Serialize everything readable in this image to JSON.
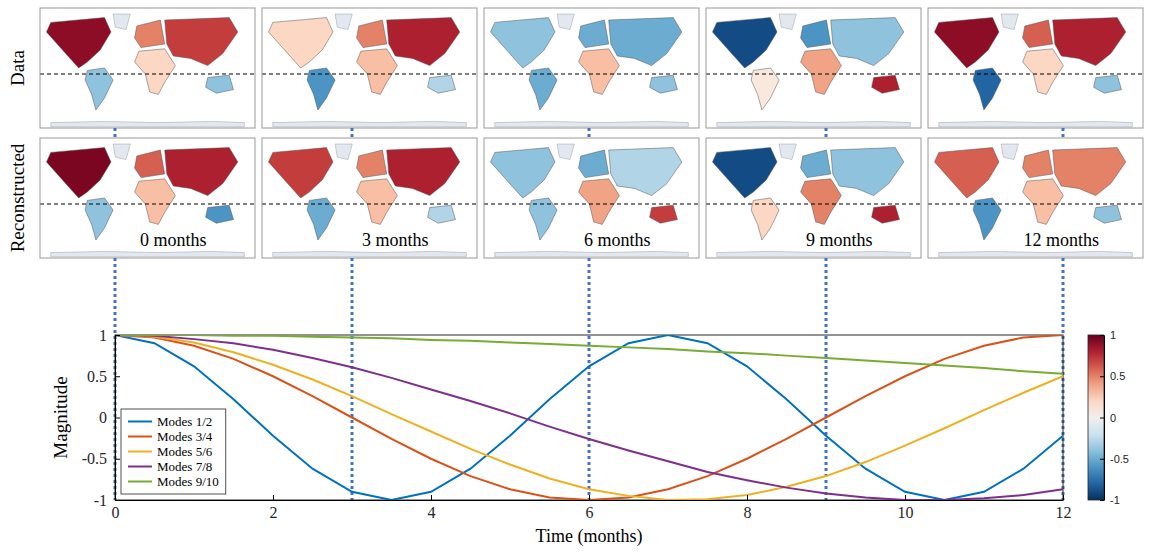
{
  "chart_data": [
    {
      "type": "choropleth",
      "row_labels": [
        "Data",
        "Reconstructed"
      ],
      "panel_labels": [
        "0 months",
        "3 months",
        "6 months",
        "9 months",
        "12 months"
      ],
      "x": [
        0,
        3,
        6,
        9,
        12
      ],
      "values": [
        [
          [
            0.9,
            -0.4,
            0.5,
            0.2,
            0.7,
            -0.4
          ],
          [
            0.2,
            -0.6,
            0.5,
            0.3,
            0.8,
            -0.3
          ],
          [
            -0.4,
            -0.5,
            -0.5,
            0.3,
            -0.5,
            -0.4
          ],
          [
            -0.9,
            0.1,
            -0.6,
            0.4,
            -0.4,
            0.8
          ],
          [
            0.9,
            -0.8,
            0.6,
            0.2,
            0.8,
            -0.4
          ]
        ],
        [
          [
            0.95,
            -0.4,
            0.6,
            0.3,
            0.8,
            -0.6
          ],
          [
            0.7,
            -0.5,
            0.5,
            0.3,
            0.8,
            -0.3
          ],
          [
            -0.4,
            -0.4,
            -0.5,
            0.4,
            -0.3,
            0.7
          ],
          [
            -0.9,
            0.2,
            -0.5,
            0.5,
            -0.4,
            0.8
          ],
          [
            0.6,
            -0.6,
            0.5,
            0.3,
            0.5,
            -0.4
          ]
        ]
      ],
      "colorbar": {
        "range": [
          -1,
          1
        ],
        "ticks": [
          -1,
          -0.5,
          0,
          0.5,
          1
        ]
      }
    },
    {
      "type": "line",
      "xlabel": "Time (months)",
      "ylabel": "Magnitude",
      "x": [
        0,
        0.5,
        1,
        1.5,
        2,
        2.5,
        3,
        3.5,
        4,
        4.5,
        5,
        5.5,
        6,
        6.5,
        7,
        7.5,
        8,
        8.5,
        9,
        9.5,
        10,
        10.5,
        11,
        11.5,
        12
      ],
      "xlim": [
        0,
        12
      ],
      "xticks": [
        0,
        2,
        4,
        6,
        8,
        10,
        12
      ],
      "ylim": [
        -1,
        1
      ],
      "yticks": [
        -1,
        -0.5,
        0,
        0.5,
        1
      ],
      "legend": "lower left",
      "series": [
        {
          "name": "Modes 1/2",
          "color": "#0072bd",
          "values": [
            1,
            0.9,
            0.62,
            0.22,
            -0.22,
            -0.62,
            -0.9,
            -1,
            -0.9,
            -0.62,
            -0.22,
            0.22,
            0.62,
            0.9,
            1,
            0.9,
            0.62,
            0.22,
            -0.22,
            -0.62,
            -0.9,
            -1,
            -0.9,
            -0.62,
            -0.22
          ]
        },
        {
          "name": "Modes 3/4",
          "color": "#d95319",
          "values": [
            1,
            0.97,
            0.87,
            0.71,
            0.5,
            0.26,
            0,
            -0.26,
            -0.5,
            -0.71,
            -0.87,
            -0.97,
            -1,
            -0.97,
            -0.87,
            -0.71,
            -0.5,
            -0.26,
            0,
            0.26,
            0.5,
            0.71,
            0.87,
            0.97,
            1
          ]
        },
        {
          "name": "Modes 5/6",
          "color": "#edb120",
          "values": [
            1,
            0.98,
            0.91,
            0.79,
            0.64,
            0.46,
            0.26,
            0.04,
            -0.17,
            -0.38,
            -0.57,
            -0.74,
            -0.87,
            -0.95,
            -1,
            -0.99,
            -0.94,
            -0.84,
            -0.71,
            -0.54,
            -0.34,
            -0.13,
            0.09,
            0.3,
            0.5
          ]
        },
        {
          "name": "Modes 7/8",
          "color": "#7e2f8e",
          "values": [
            1,
            0.99,
            0.95,
            0.9,
            0.82,
            0.72,
            0.61,
            0.48,
            0.34,
            0.2,
            0.05,
            -0.11,
            -0.26,
            -0.4,
            -0.53,
            -0.66,
            -0.76,
            -0.85,
            -0.92,
            -0.97,
            -1,
            -1,
            -0.98,
            -0.94,
            -0.87
          ]
        },
        {
          "name": "Modes 9/10",
          "color": "#77ac30",
          "values": [
            1,
            1,
            1,
            0.99,
            0.99,
            0.98,
            0.97,
            0.96,
            0.94,
            0.93,
            0.91,
            0.89,
            0.87,
            0.85,
            0.83,
            0.8,
            0.78,
            0.75,
            0.72,
            0.69,
            0.66,
            0.63,
            0.6,
            0.56,
            0.53
          ]
        }
      ]
    }
  ]
}
